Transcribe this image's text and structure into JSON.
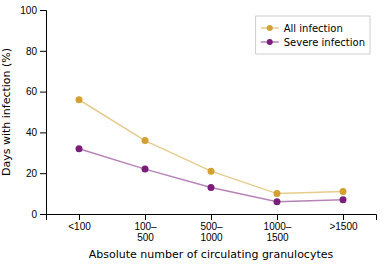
{
  "chart_data": {
    "type": "line",
    "categories": [
      "<100",
      "100–\n500",
      "500–\n1000",
      "1000–\n1500",
      ">1500"
    ],
    "series": [
      {
        "name": "All infection",
        "color": "#D4A030",
        "values": [
          56,
          36,
          21,
          10,
          11
        ]
      },
      {
        "name": "Severe infection",
        "color": "#7B1E7A",
        "values": [
          32,
          22,
          13,
          6,
          7
        ]
      }
    ],
    "xlabel": "Absolute number of circulating granulocytes",
    "ylabel": "Days with infection (%)",
    "ylim": [
      0,
      100
    ],
    "yticks": [
      0,
      20,
      40,
      60,
      80,
      100
    ],
    "marker": "circle",
    "legend": "upper right",
    "grid": false
  }
}
